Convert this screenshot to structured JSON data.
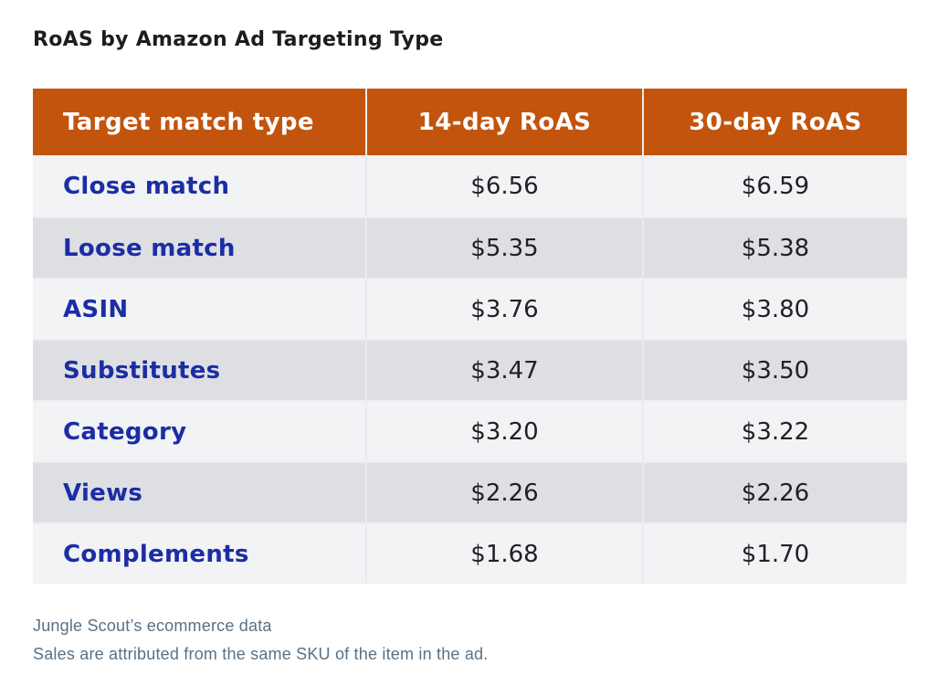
{
  "chart_data": {
    "type": "table",
    "title": "RoAS by Amazon Ad Targeting Type",
    "columns": [
      "Target match type",
      "14-day RoAS",
      "30-day RoAS"
    ],
    "rows": [
      [
        "Close match",
        "$6.56",
        "$6.59"
      ],
      [
        "Loose match",
        "$5.35",
        "$5.38"
      ],
      [
        "ASIN",
        "$3.76",
        "$3.80"
      ],
      [
        "Substitutes",
        "$3.47",
        "$3.50"
      ],
      [
        "Category",
        "$3.20",
        "$3.22"
      ],
      [
        "Views",
        "$2.26",
        "$2.26"
      ],
      [
        "Complements",
        "$1.68",
        "$1.70"
      ]
    ],
    "values_14_day": [
      6.56,
      5.35,
      3.76,
      3.47,
      3.2,
      2.26,
      1.68
    ],
    "values_30_day": [
      6.59,
      5.38,
      3.8,
      3.5,
      3.22,
      2.26,
      1.7
    ],
    "currency": "USD",
    "notes": [
      "Jungle Scout’s ecommerce data",
      "Sales are attributed from the same SKU of the item in the ad."
    ]
  },
  "colors": {
    "header_background": "#c2540e",
    "header_text": "#ffffff",
    "row_light": "#f2f3f5",
    "row_dark": "#dddfe2",
    "row_label_text": "#1c2da4",
    "value_text": "#202124",
    "title_text": "#1d1d1f",
    "note_text": "#5a7184",
    "page_background": "#ffffff"
  }
}
